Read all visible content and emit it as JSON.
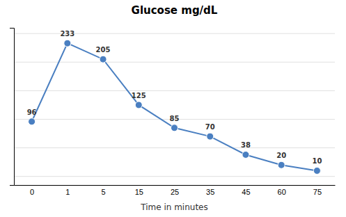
{
  "chart_data": {
    "type": "line",
    "title": "Glucose mg/dL",
    "xlabel": "Time in minutes",
    "categories": [
      "0",
      "1",
      "5",
      "15",
      "25",
      "35",
      "45",
      "60",
      "75"
    ],
    "values": [
      96,
      233,
      205,
      125,
      85,
      70,
      38,
      20,
      10
    ],
    "color": "#4a7fc1",
    "marker": "circle",
    "ylim": [
      -15,
      260
    ],
    "yticks": [
      0,
      50,
      100,
      150,
      200,
      250
    ],
    "grid": true,
    "data_labels": true,
    "tick_labels": "x"
  }
}
